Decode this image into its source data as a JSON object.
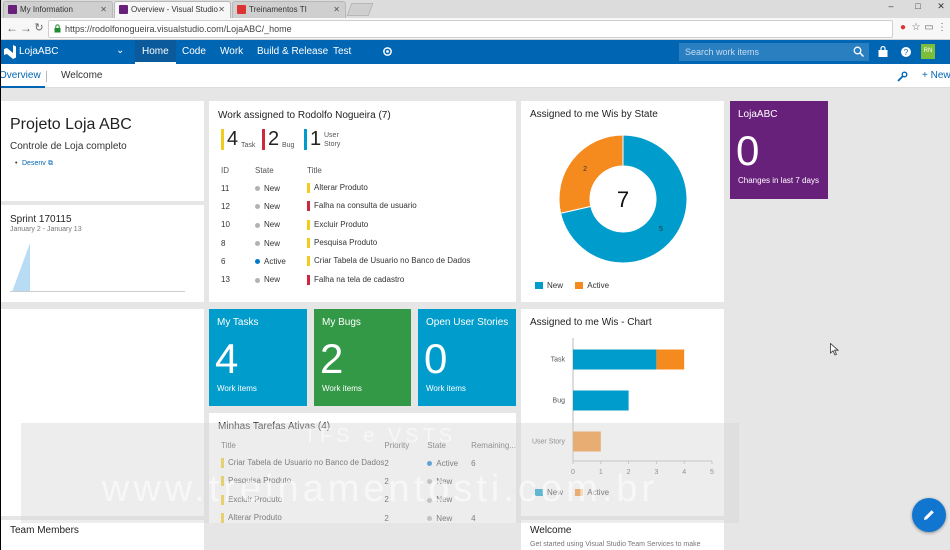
{
  "browser": {
    "tabs": [
      {
        "title": "My Information",
        "color": "#68217a"
      },
      {
        "title": "Overview - Visual Studio",
        "color": "#68217a"
      },
      {
        "title": "Treinamentos TI",
        "color": "#d33"
      }
    ],
    "url": "https://rodolfonogueira.visualstudio.com/LojaABC/_home"
  },
  "header": {
    "project": "LojaABC",
    "nav": [
      "Home",
      "Code",
      "Work",
      "Build & Release",
      "Test"
    ],
    "search_placeholder": "Search work items",
    "avatar_initials": "RN"
  },
  "subnav": {
    "tabs": [
      "Overview",
      "Welcome"
    ],
    "new_label": "+ New"
  },
  "project_widget": {
    "title": "Projeto Loja ABC",
    "description": "Controle de Loja completo",
    "link": "Desenv"
  },
  "sprint_widget": {
    "title": "Sprint 170115",
    "dates": "January 2 - January 13"
  },
  "work_assigned": {
    "title": "Work assigned to Rodolfo Nogueira (7)",
    "counts": [
      {
        "value": "4",
        "label": "Task",
        "color": "#f2cb1d"
      },
      {
        "value": "2",
        "label": "Bug",
        "color": "#cc293d"
      },
      {
        "value": "1",
        "label": "User Story",
        "color": "#009ccc"
      }
    ],
    "columns": [
      "ID",
      "State",
      "Title"
    ],
    "rows": [
      {
        "id": "11",
        "state": "New",
        "title": "Alterar Produto",
        "type_color": "#f2cb1d",
        "state_color": "#b2b2b2"
      },
      {
        "id": "12",
        "state": "New",
        "title": "Falha na consulta de usuario",
        "type_color": "#cc293d",
        "state_color": "#b2b2b2"
      },
      {
        "id": "10",
        "state": "New",
        "title": "Excluir Produto",
        "type_color": "#f2cb1d",
        "state_color": "#b2b2b2"
      },
      {
        "id": "8",
        "state": "New",
        "title": "Pesquisa Produto",
        "type_color": "#f2cb1d",
        "state_color": "#b2b2b2"
      },
      {
        "id": "6",
        "state": "Active",
        "title": "Criar Tabela de Usuario no Banco de Dados",
        "type_color": "#f2cb1d",
        "state_color": "#007acc"
      },
      {
        "id": "13",
        "state": "New",
        "title": "Falha na tela de cadastro",
        "type_color": "#cc293d",
        "state_color": "#b2b2b2"
      }
    ]
  },
  "tiles": {
    "my_tasks": {
      "title": "My Tasks",
      "count": "4",
      "sub": "Work items",
      "color": "#009ccc"
    },
    "my_bugs": {
      "title": "My Bugs",
      "count": "2",
      "sub": "Work items",
      "color": "#339947"
    },
    "open_stories": {
      "title": "Open User Stories",
      "count": "0",
      "sub": "Work items",
      "color": "#009ccc"
    },
    "lojaabc": {
      "title": "LojaABC",
      "count": "0",
      "sub": "Changes in last 7 days",
      "color": "#68217a"
    }
  },
  "minhas_tarefas": {
    "title": "Minhas Tarefas Ativas (4)",
    "columns": [
      "Title",
      "Priority",
      "State",
      "Remaining..."
    ],
    "rows": [
      {
        "title": "Criar Tabela de Usuario no Banco de Dados",
        "priority": "2",
        "state": "Active",
        "remaining": "6",
        "state_color": "#007acc"
      },
      {
        "title": "Pesquisa Produto",
        "priority": "2",
        "state": "New",
        "remaining": "",
        "state_color": "#b2b2b2"
      },
      {
        "title": "Excluir Produto",
        "priority": "2",
        "state": "New",
        "remaining": "",
        "state_color": "#b2b2b2"
      },
      {
        "title": "Alterar Produto",
        "priority": "2",
        "state": "New",
        "remaining": "4",
        "state_color": "#b2b2b2"
      }
    ]
  },
  "team_members": {
    "title": "Team Members"
  },
  "welcome": {
    "title": "Welcome",
    "text": "Get started using Visual Studio Team Services to make"
  },
  "chart_data": [
    {
      "type": "pie",
      "title": "Assigned to me Wis by State",
      "total": "7",
      "series": [
        {
          "name": "New",
          "value": 5,
          "color": "#009ccc"
        },
        {
          "name": "Active",
          "value": 2,
          "color": "#f58b1f"
        }
      ],
      "legend": "bottom"
    },
    {
      "type": "bar",
      "title": "Assigned to me Wis - Chart",
      "orientation": "horizontal",
      "stacked": true,
      "categories": [
        "Task",
        "Bug",
        "User Story"
      ],
      "series": [
        {
          "name": "New",
          "values": [
            3,
            2,
            0
          ],
          "color": "#009ccc"
        },
        {
          "name": "Active",
          "values": [
            1,
            0,
            1
          ],
          "color": "#f58b1f"
        }
      ],
      "xlim": [
        0,
        5
      ],
      "xticks": [
        "0",
        "1",
        "2",
        "3",
        "4",
        "5"
      ],
      "legend": "bottom"
    }
  ],
  "watermark": {
    "top": "TFS e VSTS",
    "url": "www.treinamentosti.com.br"
  }
}
